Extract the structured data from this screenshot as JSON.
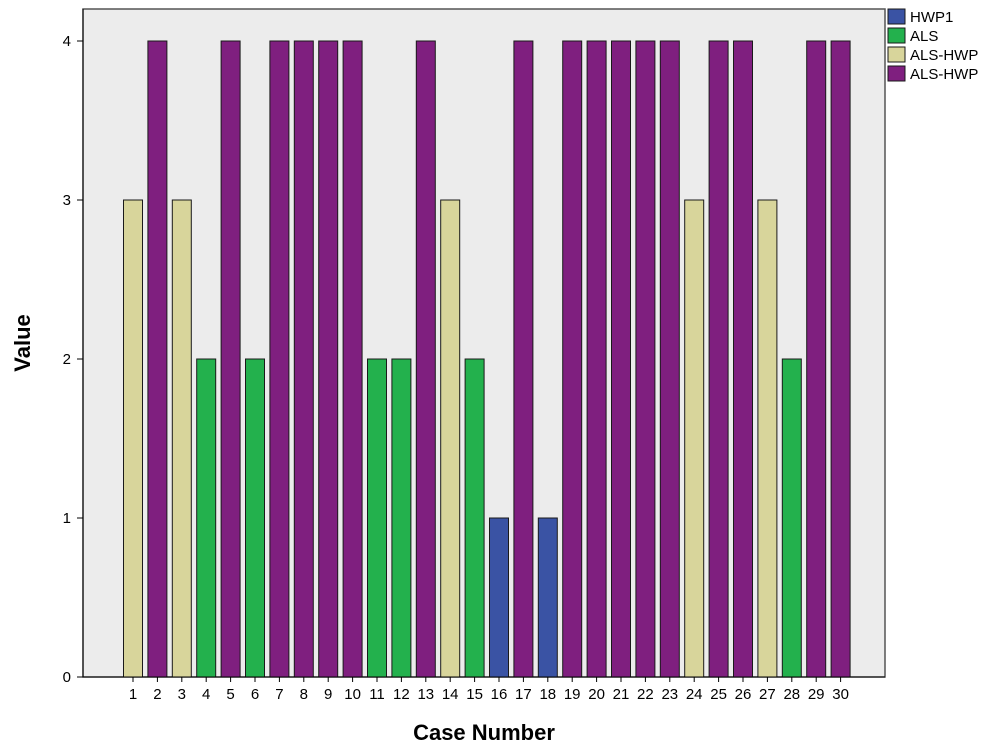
{
  "chart_data": {
    "type": "bar",
    "title": "",
    "xlabel": "Case Number",
    "ylabel": "Value",
    "ylim": [
      0,
      4
    ],
    "yticks": [
      0,
      1,
      2,
      3,
      4
    ],
    "grid": false,
    "legend_position": "top-right, outside plot",
    "background_color": "#ececec",
    "categories": [
      "1",
      "2",
      "3",
      "4",
      "5",
      "6",
      "7",
      "8",
      "9",
      "10",
      "11",
      "12",
      "13",
      "14",
      "15",
      "16",
      "17",
      "18",
      "19",
      "20",
      "21",
      "22",
      "23",
      "24",
      "25",
      "26",
      "27",
      "28",
      "29",
      "30"
    ],
    "values": [
      3,
      4,
      3,
      2,
      4,
      2,
      4,
      4,
      4,
      4,
      2,
      2,
      4,
      3,
      2,
      1,
      4,
      1,
      4,
      4,
      4,
      4,
      4,
      3,
      4,
      4,
      3,
      2,
      4,
      4
    ],
    "value_group": [
      2,
      3,
      2,
      1,
      3,
      1,
      3,
      3,
      3,
      3,
      1,
      1,
      3,
      2,
      1,
      0,
      3,
      0,
      3,
      3,
      3,
      3,
      3,
      2,
      3,
      3,
      2,
      1,
      3,
      3
    ],
    "legend": [
      {
        "label": "HWP1",
        "color": "#3a53a4"
      },
      {
        "label": "ALS",
        "color": "#23b14d"
      },
      {
        "label": "ALS-HWP",
        "color": "#d8d59b"
      },
      {
        "label": "ALS-HWP",
        "color": "#7f1f7f"
      }
    ]
  }
}
